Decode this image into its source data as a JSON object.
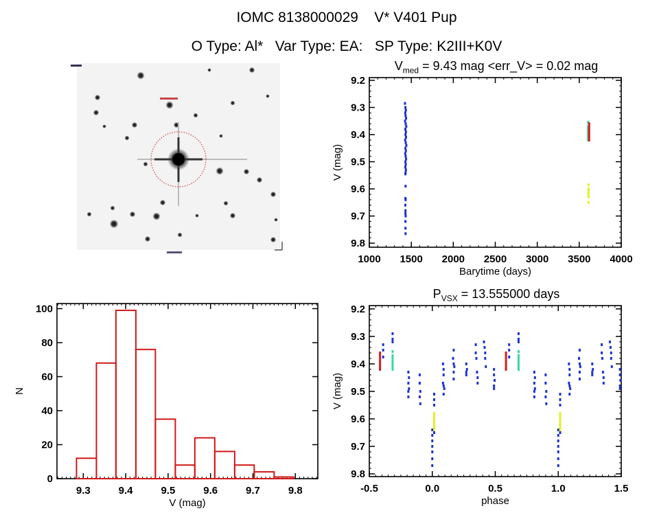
{
  "header": {
    "title": "IOMC 8138000029    V* V401 Pup",
    "subtitle": "O Type: Al*   Var Type: EA:   SP Type: K2III+K0V"
  },
  "colors": {
    "blue": "#1a30d0",
    "red": "#d81818",
    "cyan": "#30d8a0",
    "yellow": "#e4f020",
    "hist": "#d01818",
    "circle": "#d02020"
  },
  "chart_data": [
    {
      "type": "image",
      "name": "finding-chart",
      "description_marker": "dotted red circle around target star"
    },
    {
      "type": "scatter",
      "title_main": "V",
      "title_sub": "med",
      "title_rest": " = 9.43 mag <err_V> = 0.02 mag",
      "xlabel": "Barytime (days)",
      "ylabel": "V (mag)",
      "xlim": [
        1000,
        4000
      ],
      "ylim": [
        9.815,
        9.19
      ],
      "xticks": [
        1000,
        1500,
        2000,
        2500,
        3000,
        3500,
        4000
      ],
      "yticks": [
        9.2,
        9.3,
        9.4,
        9.5,
        9.6,
        9.7,
        9.8
      ],
      "series": [
        {
          "color": "blue",
          "points": [
            [
              1425,
              9.285
            ],
            [
              1430,
              9.3
            ],
            [
              1435,
              9.31
            ],
            [
              1428,
              9.32
            ],
            [
              1432,
              9.33
            ],
            [
              1438,
              9.34
            ],
            [
              1426,
              9.35
            ],
            [
              1433,
              9.36
            ],
            [
              1440,
              9.37
            ],
            [
              1429,
              9.38
            ],
            [
              1436,
              9.39
            ],
            [
              1431,
              9.4
            ],
            [
              1437,
              9.41
            ],
            [
              1427,
              9.42
            ],
            [
              1434,
              9.43
            ],
            [
              1441,
              9.44
            ],
            [
              1430,
              9.45
            ],
            [
              1435,
              9.46
            ],
            [
              1428,
              9.47
            ],
            [
              1433,
              9.48
            ],
            [
              1438,
              9.49
            ],
            [
              1430,
              9.5
            ],
            [
              1434,
              9.51
            ],
            [
              1429,
              9.52
            ],
            [
              1436,
              9.53
            ],
            [
              1432,
              9.54
            ],
            [
              1430,
              9.545
            ],
            [
              1432,
              9.59
            ],
            [
              1430,
              9.635
            ],
            [
              1433,
              9.64
            ],
            [
              1429,
              9.66
            ],
            [
              1431,
              9.68
            ],
            [
              1430,
              9.69
            ],
            [
              1433,
              9.7
            ],
            [
              1430,
              9.72
            ],
            [
              1431,
              9.745
            ],
            [
              1432,
              9.765
            ]
          ]
        },
        {
          "color": "cyan",
          "points": [
            [
              3605,
              9.355
            ],
            [
              3605,
              9.37
            ],
            [
              3605,
              9.38
            ],
            [
              3605,
              9.39
            ],
            [
              3605,
              9.4
            ],
            [
              3605,
              9.41
            ],
            [
              3605,
              9.42
            ]
          ]
        },
        {
          "color": "red",
          "points": [
            [
              3618,
              9.36
            ],
            [
              3618,
              9.37
            ],
            [
              3618,
              9.38
            ],
            [
              3618,
              9.39
            ],
            [
              3618,
              9.4
            ],
            [
              3618,
              9.41
            ],
            [
              3618,
              9.42
            ]
          ]
        },
        {
          "color": "yellow",
          "points": [
            [
              3610,
              9.585
            ],
            [
              3610,
              9.6
            ],
            [
              3610,
              9.61
            ],
            [
              3610,
              9.62
            ],
            [
              3610,
              9.63
            ],
            [
              3610,
              9.65
            ]
          ]
        }
      ]
    },
    {
      "type": "bar",
      "xlabel": "V (mag)",
      "ylabel": "N",
      "xlim": [
        9.238,
        9.853
      ],
      "ylim": [
        0,
        103
      ],
      "xticks": [
        9.3,
        9.4,
        9.5,
        9.6,
        9.7,
        9.8
      ],
      "yticks": [
        0,
        20,
        40,
        60,
        80,
        100
      ],
      "bin_edges": [
        9.284,
        9.331,
        9.377,
        9.424,
        9.47,
        9.517,
        9.563,
        9.61,
        9.657,
        9.703,
        9.75,
        9.796
      ],
      "counts": [
        12,
        68,
        99,
        76,
        35,
        8,
        24,
        16,
        8,
        4,
        1
      ]
    },
    {
      "type": "scatter",
      "title_main": "P",
      "title_sub": "VSX",
      "title_rest": " = 13.555000 days",
      "xlabel": "phase",
      "ylabel": "V (mag)",
      "xlim": [
        -0.5,
        1.5
      ],
      "ylim": [
        9.81,
        9.188
      ],
      "xticks": [
        -0.5,
        0.0,
        0.5,
        1.0,
        1.5
      ],
      "xtick_labels": [
        "-0.5",
        "0.0",
        "0.5",
        "1.0",
        "1.5"
      ],
      "yticks": [
        9.2,
        9.3,
        9.4,
        9.5,
        9.6,
        9.7,
        9.8
      ],
      "phase_repeated": true,
      "series": [
        {
          "color": "blue",
          "points": [
            [
              0.0,
              9.64
            ],
            [
              0.0,
              9.66
            ],
            [
              0.0,
              9.68
            ],
            [
              0.0,
              9.7
            ],
            [
              0.0,
              9.72
            ],
            [
              0.0,
              9.745
            ],
            [
              0.0,
              9.77
            ],
            [
              0.015,
              9.51
            ],
            [
              0.015,
              9.53
            ],
            [
              0.015,
              9.55
            ],
            [
              0.015,
              9.65
            ],
            [
              0.085,
              9.4
            ],
            [
              0.09,
              9.42
            ],
            [
              0.09,
              9.44
            ],
            [
              0.085,
              9.47
            ],
            [
              0.09,
              9.48
            ],
            [
              0.095,
              9.49
            ],
            [
              0.09,
              9.51
            ],
            [
              0.17,
              9.35
            ],
            [
              0.165,
              9.38
            ],
            [
              0.17,
              9.4
            ],
            [
              0.175,
              9.41
            ],
            [
              0.17,
              9.43
            ],
            [
              0.17,
              9.455
            ],
            [
              0.27,
              9.4
            ],
            [
              0.275,
              9.42
            ],
            [
              0.27,
              9.43
            ],
            [
              0.27,
              9.44
            ],
            [
              0.345,
              9.33
            ],
            [
              0.345,
              9.36
            ],
            [
              0.35,
              9.38
            ],
            [
              0.355,
              9.43
            ],
            [
              0.36,
              9.45
            ],
            [
              0.36,
              9.47
            ],
            [
              0.41,
              9.32
            ],
            [
              0.415,
              9.34
            ],
            [
              0.42,
              9.36
            ],
            [
              0.42,
              9.38
            ],
            [
              0.425,
              9.41
            ],
            [
              0.49,
              9.42
            ],
            [
              0.49,
              9.44
            ],
            [
              0.495,
              9.46
            ],
            [
              0.49,
              9.48
            ],
            [
              0.49,
              9.49
            ],
            [
              0.61,
              9.33
            ],
            [
              0.61,
              9.35
            ],
            [
              0.61,
              9.375
            ],
            [
              0.685,
              9.29
            ],
            [
              0.685,
              9.31
            ],
            [
              0.685,
              9.32
            ],
            [
              0.81,
              9.43
            ],
            [
              0.815,
              9.45
            ],
            [
              0.81,
              9.47
            ],
            [
              0.815,
              9.49
            ],
            [
              0.81,
              9.5
            ],
            [
              0.81,
              9.52
            ],
            [
              0.9,
              9.44
            ],
            [
              0.9,
              9.47
            ],
            [
              0.905,
              9.5
            ],
            [
              0.9,
              9.52
            ],
            [
              0.905,
              9.545
            ]
          ]
        },
        {
          "color": "red",
          "points": [
            [
              0.585,
              9.36
            ],
            [
              0.585,
              9.37
            ],
            [
              0.585,
              9.38
            ],
            [
              0.585,
              9.39
            ],
            [
              0.585,
              9.4
            ],
            [
              0.585,
              9.41
            ],
            [
              0.585,
              9.42
            ]
          ]
        },
        {
          "color": "cyan",
          "points": [
            [
              0.685,
              9.355
            ],
            [
              0.685,
              9.37
            ],
            [
              0.685,
              9.38
            ],
            [
              0.685,
              9.39
            ],
            [
              0.685,
              9.4
            ],
            [
              0.685,
              9.41
            ],
            [
              0.685,
              9.42
            ]
          ]
        },
        {
          "color": "yellow",
          "points": [
            [
              0.015,
              9.58
            ],
            [
              0.015,
              9.59
            ],
            [
              0.015,
              9.6
            ],
            [
              0.015,
              9.61
            ],
            [
              0.015,
              9.62
            ],
            [
              0.015,
              9.63
            ],
            [
              0.015,
              9.64
            ]
          ]
        }
      ]
    }
  ]
}
